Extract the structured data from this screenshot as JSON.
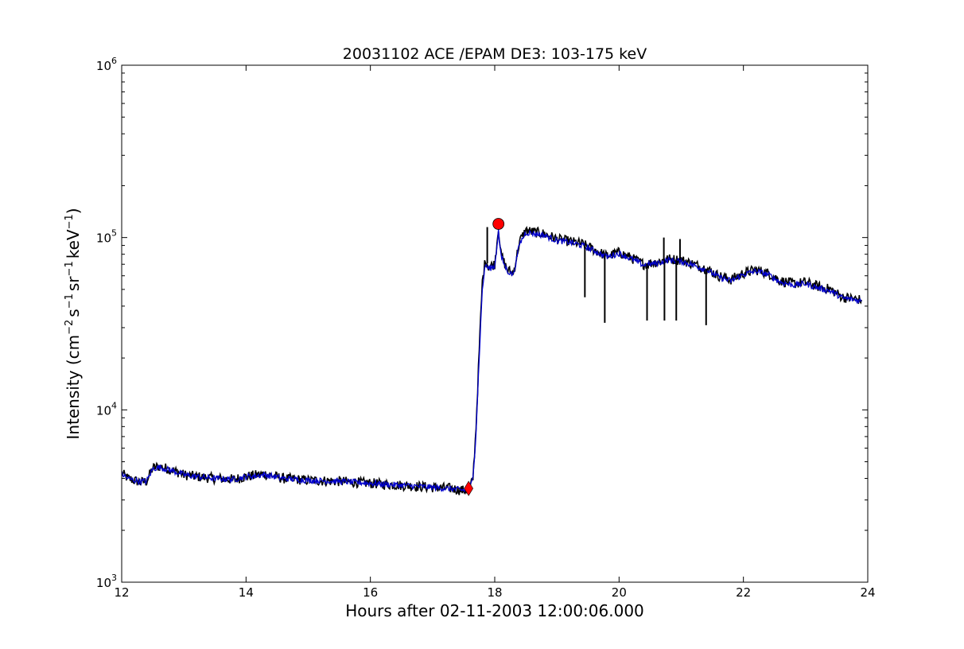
{
  "chart_data": {
    "type": "line",
    "title": "20031102 ACE /EPAM DE3: 103-175 keV",
    "xlabel": "Hours after 02-11-2003 12:00:06.000",
    "ylabel": {
      "prefix": "Intensity (cm",
      "exp1": "−2",
      "s": "s",
      "exp2": "−1",
      "sr": "sr",
      "exp3": "−1",
      "kev": "keV",
      "exp4": "−1",
      "suffix": ")"
    },
    "xlim": [
      12,
      24
    ],
    "ylim": [
      1000,
      1000000
    ],
    "yscale": "log",
    "x_ticks": [
      12,
      14,
      16,
      18,
      20,
      22,
      24
    ],
    "x_tick_labels": [
      "12",
      "14",
      "16",
      "18",
      "20",
      "22",
      "24"
    ],
    "y_ticks": [
      {
        "value": 1000,
        "base": "10",
        "exp": "3"
      },
      {
        "value": 10000,
        "base": "10",
        "exp": "4"
      },
      {
        "value": 100000,
        "base": "10",
        "exp": "5"
      },
      {
        "value": 1000000,
        "base": "10",
        "exp": "6"
      }
    ],
    "grid": false,
    "series": [
      {
        "color": "#000000",
        "style": "raw",
        "x": [
          12.0,
          12.1,
          12.2,
          12.3,
          12.4,
          12.5,
          12.6,
          12.8,
          13.0,
          13.2,
          13.5,
          13.8,
          14.0,
          14.3,
          14.6,
          15.0,
          15.5,
          16.0,
          16.5,
          17.0,
          17.3,
          17.5,
          17.6,
          17.65,
          17.7,
          17.75,
          17.8,
          17.85,
          17.9,
          18.0,
          18.06,
          18.1,
          18.2,
          18.3,
          18.4,
          18.5,
          18.6,
          18.8,
          19.0,
          19.2,
          19.4,
          19.6,
          19.8,
          20.0,
          20.2,
          20.4,
          20.6,
          20.8,
          21.0,
          21.2,
          21.4,
          21.6,
          21.8,
          22.0,
          22.2,
          22.4,
          22.6,
          22.8,
          23.0,
          23.2,
          23.4,
          23.6,
          23.8,
          23.9
        ],
        "y": [
          4300,
          4000,
          3900,
          3800,
          3850,
          4600,
          4700,
          4500,
          4200,
          4100,
          4000,
          3950,
          4100,
          4250,
          4000,
          3900,
          3850,
          3750,
          3650,
          3550,
          3500,
          3400,
          3500,
          4000,
          8000,
          22000,
          55000,
          75000,
          68000,
          70000,
          115000,
          80000,
          65000,
          62000,
          95000,
          110000,
          108000,
          105000,
          98000,
          95000,
          92000,
          85000,
          78000,
          82000,
          76000,
          70000,
          72000,
          75000,
          74000,
          70000,
          66000,
          60000,
          57000,
          62000,
          65000,
          62000,
          56000,
          54000,
          55000,
          52000,
          50000,
          45000,
          44000,
          43500
        ]
      },
      {
        "color": "#0000cc",
        "style": "smoothed",
        "x": [
          12.0,
          12.1,
          12.2,
          12.3,
          12.4,
          12.5,
          12.6,
          12.8,
          13.0,
          13.2,
          13.5,
          13.8,
          14.0,
          14.3,
          14.6,
          15.0,
          15.5,
          16.0,
          16.5,
          17.0,
          17.3,
          17.5,
          17.6,
          17.65,
          17.7,
          17.75,
          17.8,
          17.85,
          17.9,
          18.0,
          18.06,
          18.1,
          18.2,
          18.3,
          18.4,
          18.5,
          18.6,
          18.8,
          19.0,
          19.2,
          19.4,
          19.6,
          19.8,
          20.0,
          20.2,
          20.4,
          20.6,
          20.8,
          21.0,
          21.2,
          21.4,
          21.6,
          21.8,
          22.0,
          22.2,
          22.4,
          22.6,
          22.8,
          23.0,
          23.2,
          23.4,
          23.6,
          23.8,
          23.9
        ],
        "y": [
          4250,
          4000,
          3900,
          3850,
          3850,
          4550,
          4650,
          4450,
          4200,
          4100,
          4000,
          3950,
          4100,
          4200,
          4000,
          3900,
          3850,
          3750,
          3650,
          3550,
          3480,
          3420,
          3500,
          4000,
          7500,
          20000,
          50000,
          70000,
          66000,
          68000,
          110000,
          78000,
          64000,
          61000,
          92000,
          107000,
          106000,
          103000,
          96000,
          94000,
          90000,
          84000,
          77000,
          81000,
          75000,
          69000,
          71000,
          74000,
          73000,
          69000,
          65000,
          59000,
          56000,
          61000,
          64000,
          61000,
          55000,
          53000,
          54000,
          51000,
          49000,
          44500,
          43500,
          43000
        ]
      }
    ],
    "spikes": [
      {
        "x": 17.88,
        "y_top": 115000
      },
      {
        "x": 19.45,
        "y_bottom": 45000
      },
      {
        "x": 19.77,
        "y_bottom": 32000
      },
      {
        "x": 20.45,
        "y_bottom": 33000
      },
      {
        "x": 20.72,
        "y_top": 100000
      },
      {
        "x": 20.73,
        "y_bottom": 33000
      },
      {
        "x": 20.92,
        "y_bottom": 33000
      },
      {
        "x": 20.98,
        "y_top": 98000
      },
      {
        "x": 21.4,
        "y_bottom": 31000
      }
    ],
    "markers": [
      {
        "name": "onset-marker",
        "shape": "diamond",
        "color": "#ff0000",
        "x": 17.58,
        "y": 3500
      },
      {
        "name": "peak-marker",
        "shape": "circle",
        "color": "#ff0000",
        "x": 18.06,
        "y": 120000
      }
    ]
  }
}
